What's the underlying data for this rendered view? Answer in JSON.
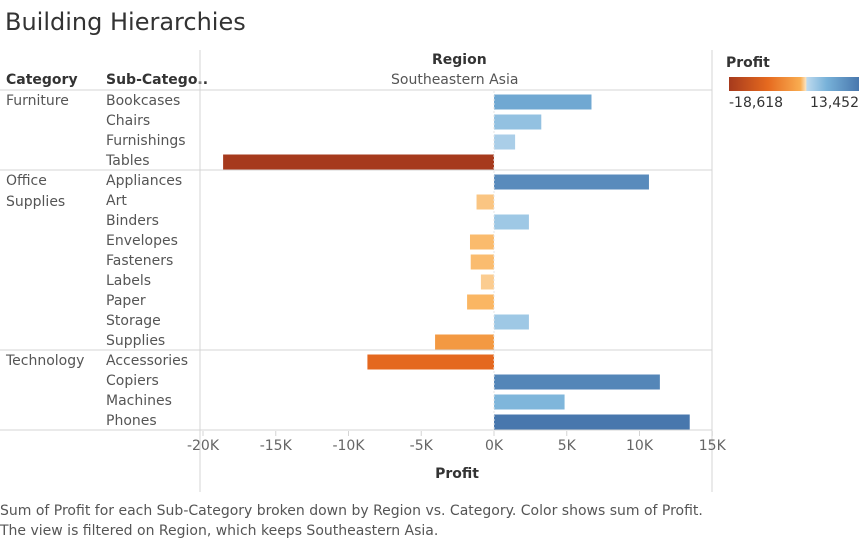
{
  "title": "Building Hierarchies",
  "headers": {
    "category": "Category",
    "subcategory": "Sub-Catego..",
    "region": "Region",
    "region_value": "Southeastern Asia"
  },
  "legend": {
    "title": "Profit",
    "min_label": "-18,618",
    "max_label": "13,452",
    "colors": [
      "#a63a1d",
      "#e66a1f",
      "#f9ad51",
      "#fce1bb",
      "#bcd9ee",
      "#78b2d9",
      "#4877ad"
    ]
  },
  "caption": {
    "line1": "Sum of Profit for each Sub-Category broken down by Region vs. Category.  Color shows sum of Profit.",
    "line2": "The view is filtered on Region, which keeps Southeastern Asia."
  },
  "chart_data": {
    "type": "bar",
    "orientation": "horizontal",
    "title": "Building Hierarchies",
    "xlabel": "Profit",
    "xlim": [
      -21000,
      14500
    ],
    "xticks": [
      -20000,
      -15000,
      -10000,
      -5000,
      0,
      5000,
      10000,
      15000
    ],
    "xtick_labels": [
      "-20K",
      "-15K",
      "-10K",
      "-5K",
      "0K",
      "5K",
      "10K",
      "15K"
    ],
    "grid": false,
    "groups": [
      {
        "category": "Furniture",
        "rows": [
          {
            "subcategory": "Bookcases",
            "value": 6700
          },
          {
            "subcategory": "Chairs",
            "value": 3250
          },
          {
            "subcategory": "Furnishings",
            "value": 1450
          },
          {
            "subcategory": "Tables",
            "value": -18618
          }
        ]
      },
      {
        "category": "Office Supplies",
        "rows": [
          {
            "subcategory": "Appliances",
            "value": 10650
          },
          {
            "subcategory": "Art",
            "value": -1200
          },
          {
            "subcategory": "Binders",
            "value": 2400
          },
          {
            "subcategory": "Envelopes",
            "value": -1650
          },
          {
            "subcategory": "Fasteners",
            "value": -1600
          },
          {
            "subcategory": "Labels",
            "value": -900
          },
          {
            "subcategory": "Paper",
            "value": -1850
          },
          {
            "subcategory": "Storage",
            "value": 2400
          },
          {
            "subcategory": "Supplies",
            "value": -4050
          }
        ]
      },
      {
        "category": "Technology",
        "rows": [
          {
            "subcategory": "Accessories",
            "value": -8700
          },
          {
            "subcategory": "Copiers",
            "value": 11400
          },
          {
            "subcategory": "Machines",
            "value": 4850
          },
          {
            "subcategory": "Phones",
            "value": 13452
          }
        ]
      }
    ],
    "value_min": -18618,
    "value_max": 13452
  }
}
